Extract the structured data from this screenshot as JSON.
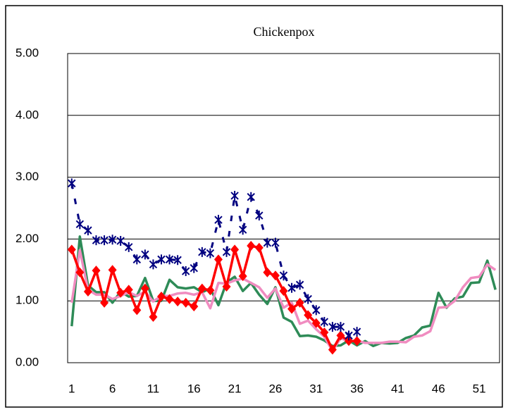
{
  "chart_data": {
    "type": "line",
    "title": "Chickenpox",
    "categories": [
      1,
      null,
      null,
      null,
      null,
      6,
      null,
      null,
      null,
      null,
      11,
      null,
      null,
      null,
      null,
      16,
      null,
      null,
      null,
      null,
      21,
      null,
      null,
      null,
      null,
      26,
      null,
      null,
      null,
      null,
      31,
      null,
      null,
      null,
      null,
      36,
      null,
      null,
      null,
      null,
      41,
      null,
      null,
      null,
      null,
      46,
      null,
      null,
      null,
      null,
      51,
      null,
      null
    ],
    "ylim": [
      0,
      5
    ],
    "yticks": [
      {
        "value": 0,
        "label": "0.00"
      },
      {
        "value": 1,
        "label": "1.00"
      },
      {
        "value": 2,
        "label": "2.00"
      },
      {
        "value": 3,
        "label": "3.00"
      },
      {
        "value": 4,
        "label": "4.00"
      },
      {
        "value": 5,
        "label": "5.00"
      }
    ],
    "grid": true,
    "series": [
      {
        "color": "#2e8b57",
        "marker": "none",
        "values": [
          0.59,
          2.04,
          1.25,
          1.14,
          1.14,
          0.97,
          1.15,
          1.07,
          1.08,
          1.37,
          1.0,
          1.0,
          1.34,
          1.22,
          1.2,
          1.22,
          1.14,
          1.2,
          0.93,
          1.3,
          1.39,
          1.16,
          1.29,
          1.1,
          0.95,
          1.22,
          0.73,
          0.66,
          0.43,
          0.44,
          0.42,
          0.36,
          0.27,
          0.28,
          0.36,
          0.28,
          0.35,
          0.27,
          0.32,
          0.31,
          0.32,
          0.4,
          0.44,
          0.57,
          0.6,
          1.13,
          0.89,
          1.04,
          1.07,
          1.29,
          1.3,
          1.65,
          1.18
        ]
      },
      {
        "color": "#f08cc0",
        "marker": "none",
        "values": [
          0.97,
          1.82,
          1.18,
          1.1,
          1.1,
          1.03,
          1.08,
          1.14,
          1.08,
          1.15,
          0.99,
          1.08,
          1.08,
          1.12,
          1.13,
          1.1,
          1.14,
          0.88,
          1.29,
          1.28,
          1.33,
          1.36,
          1.29,
          1.22,
          1.05,
          1.2,
          0.89,
          0.97,
          0.63,
          0.68,
          0.54,
          0.42,
          0.19,
          0.4,
          0.34,
          0.36,
          0.32,
          0.32,
          0.32,
          0.34,
          0.34,
          0.33,
          0.42,
          0.44,
          0.51,
          0.89,
          0.9,
          1.0,
          1.22,
          1.37,
          1.39,
          1.59,
          1.5
        ]
      },
      {
        "color": "#ff0000",
        "marker": "diamond",
        "values": [
          1.83,
          1.46,
          1.15,
          1.49,
          0.97,
          1.5,
          1.13,
          1.18,
          0.85,
          1.2,
          0.74,
          1.07,
          1.03,
          0.99,
          0.97,
          0.91,
          1.2,
          1.17,
          1.67,
          1.23,
          1.83,
          1.4,
          1.89,
          1.86,
          1.46,
          1.41,
          1.16,
          0.87,
          0.97,
          0.77,
          0.64,
          0.49,
          0.21,
          0.44,
          0.35,
          0.35,
          null,
          null,
          null,
          null,
          null,
          null,
          null,
          null,
          null,
          null,
          null,
          null,
          null,
          null,
          null,
          null,
          null
        ]
      },
      {
        "color": "#000080",
        "marker": "asterisk",
        "dashed": true,
        "values": [
          2.9,
          2.24,
          2.14,
          1.98,
          1.98,
          1.99,
          1.97,
          1.87,
          1.67,
          1.75,
          1.59,
          1.67,
          1.67,
          1.66,
          1.48,
          1.53,
          1.79,
          1.77,
          2.31,
          1.79,
          2.7,
          2.15,
          2.68,
          2.38,
          1.94,
          1.94,
          1.41,
          1.21,
          1.26,
          1.03,
          0.85,
          0.66,
          0.58,
          0.58,
          0.44,
          0.5,
          null,
          null,
          null,
          null,
          null,
          null,
          null,
          null,
          null,
          null,
          null,
          null,
          null,
          null,
          null,
          null,
          null
        ]
      }
    ]
  }
}
